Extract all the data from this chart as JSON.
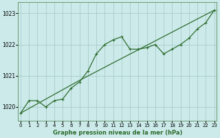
{
  "title": "Graphe pression niveau de la mer (hPa)",
  "background_color": "#cceaea",
  "grid_color": "#aacccc",
  "line_color": "#2d6b2d",
  "x_ticks": [
    0,
    1,
    2,
    3,
    4,
    5,
    6,
    7,
    8,
    9,
    10,
    11,
    12,
    13,
    14,
    15,
    16,
    17,
    18,
    19,
    20,
    21,
    22,
    23
  ],
  "y_ticks": [
    1020,
    1021,
    1022,
    1023
  ],
  "ylim": [
    1019.55,
    1023.35
  ],
  "xlim": [
    -0.3,
    23.3
  ],
  "series1_x": [
    0,
    1,
    2,
    3,
    4,
    5,
    6,
    7,
    8,
    9,
    10,
    11,
    12,
    13,
    14,
    15,
    16,
    17,
    18,
    19,
    20,
    21,
    22,
    23
  ],
  "series1_y": [
    1019.8,
    1020.2,
    1020.2,
    1020.0,
    1020.2,
    1020.25,
    1020.6,
    1020.8,
    1021.15,
    1021.7,
    1022.0,
    1022.15,
    1022.25,
    1021.85,
    1021.85,
    1021.9,
    1022.0,
    1021.7,
    1021.85,
    1022.0,
    1022.2,
    1022.5,
    1022.7,
    1023.1
  ],
  "series2_x": [
    0,
    7,
    23
  ],
  "series2_y": [
    1019.8,
    1020.85,
    1023.1
  ]
}
